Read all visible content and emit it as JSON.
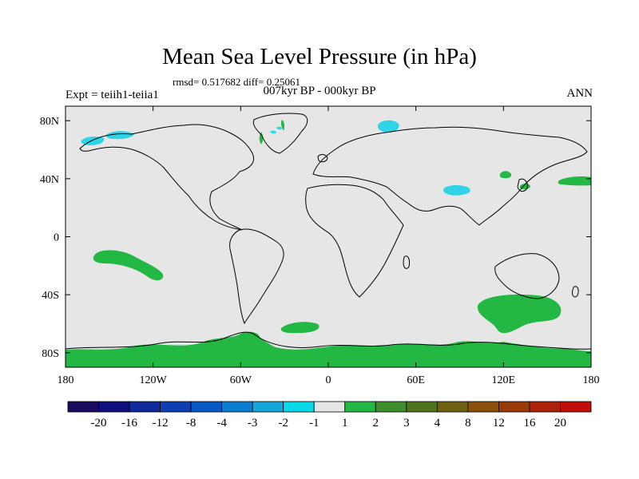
{
  "title": "Mean Sea Level Pressure (in hPa)",
  "stats_line": "rmsd= 0.517682 diff= 0.25061",
  "period_line": "007kyr BP - 000kyr BP",
  "experiment_line": "Expt = teiih1-teiia1",
  "season_label": "ANN",
  "chart_data": {
    "type": "heatmap",
    "projection": "cylindrical-equidistant",
    "lon_range": [
      -180,
      180
    ],
    "lat_range": [
      -90,
      90
    ],
    "x_ticks": [
      {
        "value": -180,
        "label": "180"
      },
      {
        "value": -120,
        "label": "120W"
      },
      {
        "value": -60,
        "label": "60W"
      },
      {
        "value": 0,
        "label": "0"
      },
      {
        "value": 60,
        "label": "60E"
      },
      {
        "value": 120,
        "label": "120E"
      },
      {
        "value": 180,
        "label": "180"
      }
    ],
    "y_ticks": [
      {
        "value": 80,
        "label": "80N"
      },
      {
        "value": 40,
        "label": "40N"
      },
      {
        "value": 0,
        "label": "0"
      },
      {
        "value": -40,
        "label": "40S"
      },
      {
        "value": -80,
        "label": "80S"
      }
    ],
    "background_color": "#e6e6e6",
    "coastline_color": "#000000",
    "colorbar": {
      "colors": [
        "#1a0b5e",
        "#10107d",
        "#0e2a9b",
        "#0b3fb2",
        "#0858c5",
        "#0a7fd0",
        "#16a7d8",
        "#06d9e8",
        "#e6e6e6",
        "#22b843",
        "#3c8f2a",
        "#50741c",
        "#6e6212",
        "#8a500c",
        "#9a3a08",
        "#ac2208",
        "#c20d08"
      ],
      "labels": [
        "-20",
        "-16",
        "-12",
        "-8",
        "-4",
        "-3",
        "-2",
        "-1",
        "1",
        "2",
        "3",
        "4",
        "8",
        "12",
        "16",
        "20"
      ]
    },
    "anomaly_regions": [
      {
        "category": "-2 to -1",
        "color": "#2ed5e8",
        "lon": -167,
        "lat": 70
      },
      {
        "category": "-2 to -1",
        "color": "#2ed5e8",
        "lon": -143,
        "lat": 71
      },
      {
        "category": "-2 to -1",
        "color": "#2ed5e8",
        "lon": 42,
        "lat": 76
      },
      {
        "category": "-2 to -1",
        "color": "#2ed5e8",
        "lon": 95,
        "lat": 34
      },
      {
        "category": "-2 to -1",
        "color": "#2ed5e8",
        "lon": -27,
        "lat": 76
      },
      {
        "category": "1 to 2",
        "color": "#22b843",
        "lon": -142,
        "lat": -24
      },
      {
        "category": "1 to 2",
        "color": "#22b843",
        "lon": 122,
        "lat": -55
      },
      {
        "category": "1 to 2",
        "color": "#22b843",
        "lon": 160,
        "lat": 38
      },
      {
        "category": "1 to 2",
        "color": "#22b843",
        "lon": 125,
        "lat": 43
      },
      {
        "category": "1 to 2",
        "color": "#22b843",
        "lon": -28,
        "lat": 80
      },
      {
        "category": "1 to 2",
        "color": "#22b843",
        "lon": -4,
        "lat": -67
      },
      {
        "category": "1 to 2",
        "color": "#22b843",
        "lon": 0,
        "lat": -82
      }
    ]
  }
}
